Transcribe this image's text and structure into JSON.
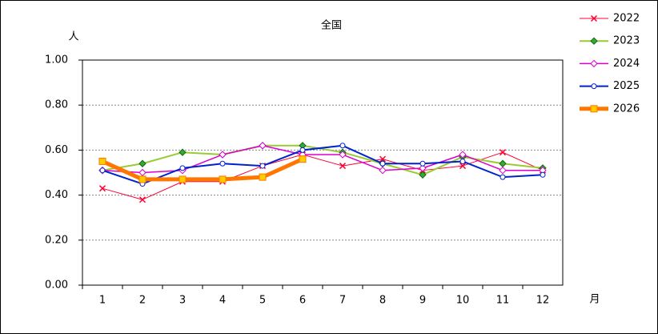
{
  "chart_data": {
    "type": "line",
    "title": "全国",
    "y_label": "人",
    "x_label": "月",
    "categories": [
      "1",
      "2",
      "3",
      "4",
      "5",
      "6",
      "7",
      "8",
      "9",
      "10",
      "11",
      "12"
    ],
    "ylim": [
      0,
      1
    ],
    "yticks": [
      {
        "value": 0,
        "label": "0.00"
      },
      {
        "value": 0.2,
        "label": "0.20"
      },
      {
        "value": 0.4,
        "label": "0.40"
      },
      {
        "value": 0.6,
        "label": "0.60"
      },
      {
        "value": 0.8,
        "label": "0.80"
      },
      {
        "value": 1,
        "label": "1.00"
      }
    ],
    "grid": true,
    "legend": "right",
    "series": [
      {
        "name": "2022",
        "color": "#ff0033",
        "marker": "x",
        "line_width": 1,
        "values": [
          0.43,
          0.38,
          0.46,
          0.46,
          0.53,
          0.58,
          0.53,
          0.56,
          0.51,
          0.53,
          0.59,
          0.51
        ]
      },
      {
        "name": "2023",
        "color": "#99cc33",
        "marker": "diamond",
        "marker_color": "#33aa33",
        "line_width": 2,
        "values": [
          0.51,
          0.54,
          0.59,
          0.58,
          0.62,
          0.62,
          0.59,
          0.54,
          0.49,
          0.57,
          0.54,
          0.52
        ]
      },
      {
        "name": "2024",
        "color": "#dd00cc",
        "marker": "diamond-open",
        "line_width": 1.5,
        "values": [
          0.51,
          0.5,
          0.51,
          0.58,
          0.62,
          0.58,
          0.58,
          0.51,
          0.52,
          0.58,
          0.51,
          0.51
        ]
      },
      {
        "name": "2025",
        "color": "#0022cc",
        "marker": "circle-open",
        "line_width": 2,
        "values": [
          0.51,
          0.45,
          0.52,
          0.54,
          0.53,
          0.6,
          0.62,
          0.54,
          0.54,
          0.55,
          0.48,
          0.49
        ]
      },
      {
        "name": "2026",
        "color": "#ff7700",
        "marker": "square",
        "marker_color": "#ffcc00",
        "line_width": 5,
        "values": [
          0.55,
          0.47,
          0.47,
          0.47,
          0.48,
          0.56,
          null,
          null,
          null,
          null,
          null,
          null
        ]
      }
    ]
  }
}
